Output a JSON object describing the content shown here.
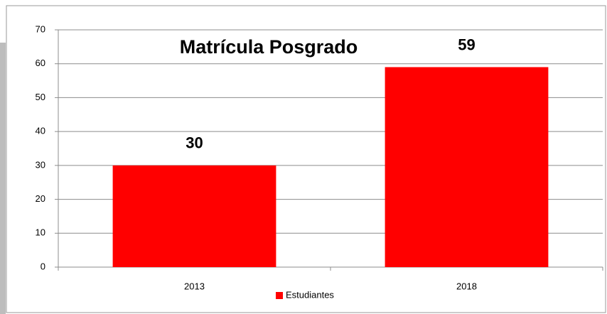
{
  "chart_data": {
    "type": "bar",
    "title": "Matrícula Posgrado",
    "categories": [
      "2013",
      "2018"
    ],
    "series": [
      {
        "name": "Estudiantes",
        "color": "#ff0000",
        "values": [
          30,
          59
        ]
      }
    ],
    "ylim": [
      0,
      70
    ],
    "yticks": [
      0,
      10,
      20,
      30,
      40,
      50,
      60,
      70
    ],
    "grid": true,
    "legend": "bottom"
  }
}
